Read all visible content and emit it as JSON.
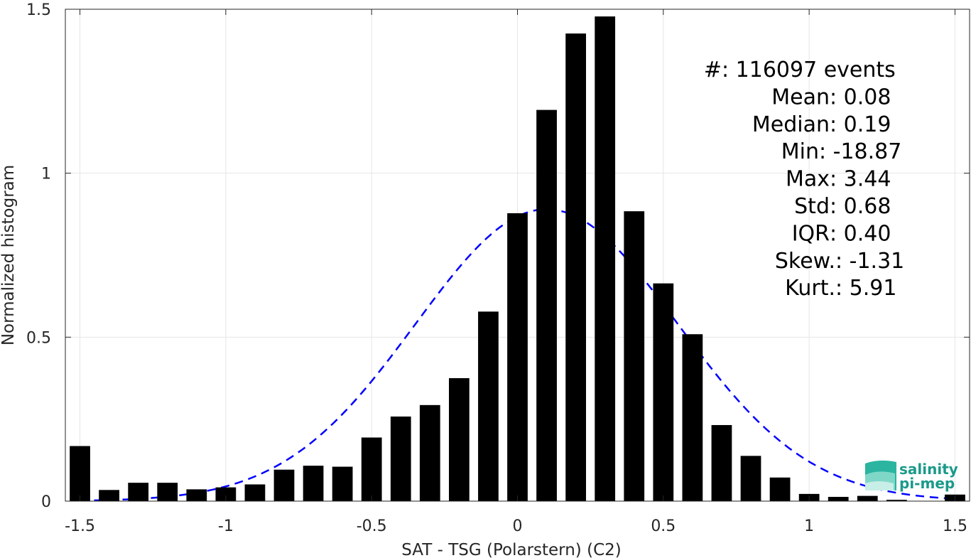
{
  "chart_data": {
    "type": "bar",
    "xlabel": "SAT - TSG (Polarstern) (C2)",
    "ylabel": "Normalized histogram",
    "xlim": [
      -1.55,
      1.55
    ],
    "ylim": [
      0,
      1.5
    ],
    "xticks": [
      -1.5,
      -1,
      -0.5,
      0,
      0.5,
      1,
      1.5
    ],
    "xtick_labels": [
      "-1.5",
      "-1",
      "-0.5",
      "0",
      "0.5",
      "1",
      "1.5"
    ],
    "yticks": [
      0,
      0.5,
      1,
      1.5
    ],
    "ytick_labels": [
      "0",
      "0.5",
      "1",
      "1.5"
    ],
    "grid": true,
    "bar_color": "#000000",
    "bar_width": 0.07,
    "bars": {
      "x": [
        -1.5,
        -1.4,
        -1.3,
        -1.2,
        -1.1,
        -1.0,
        -0.9,
        -0.8,
        -0.7,
        -0.6,
        -0.5,
        -0.4,
        -0.3,
        -0.2,
        -0.1,
        0.0,
        0.1,
        0.2,
        0.3,
        0.4,
        0.5,
        0.6,
        0.7,
        0.8,
        0.9,
        1.0,
        1.1,
        1.2,
        1.3,
        1.5
      ],
      "y": [
        0.168,
        0.034,
        0.056,
        0.056,
        0.036,
        0.042,
        0.051,
        0.096,
        0.108,
        0.105,
        0.194,
        0.258,
        0.293,
        0.375,
        0.578,
        0.878,
        1.193,
        1.426,
        1.478,
        0.884,
        0.664,
        0.509,
        0.232,
        0.138,
        0.072,
        0.022,
        0.013,
        0.016,
        0.004,
        0.02
      ]
    },
    "fit": {
      "type": "gaussian",
      "style": "dashed",
      "color": "#0000ff",
      "mean": 0.1,
      "std": 0.45,
      "peak": 0.89,
      "x_range": [
        -1.5,
        1.5
      ]
    },
    "stats": [
      {
        "label": "#  ",
        "value": ": 116097 events"
      },
      {
        "label": "Mean ",
        "value": ": 0.08"
      },
      {
        "label": "Median ",
        "value": ": 0.19"
      },
      {
        "label": "Min ",
        "value": ": -18.87"
      },
      {
        "label": "Max ",
        "value": ": 3.44"
      },
      {
        "label": "Std ",
        "value": ": 0.68"
      },
      {
        "label": "IQR ",
        "value": ": 0.40"
      },
      {
        "label": "Skew. ",
        "value": ": -1.31"
      },
      {
        "label": "Kurt. ",
        "value": ": 5.91"
      }
    ]
  },
  "logo": {
    "line1": "salinity",
    "line2": "pi-mep",
    "color": "#1a9a8a"
  }
}
